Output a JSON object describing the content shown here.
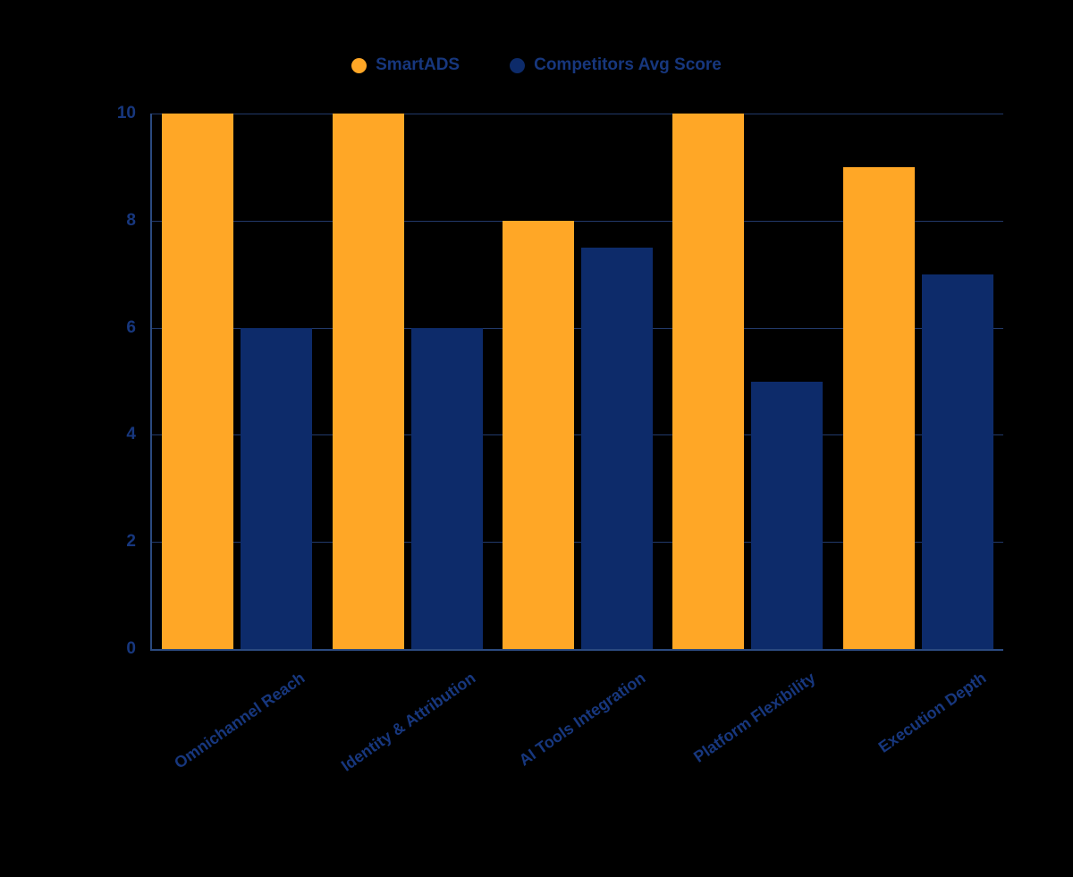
{
  "chart_data": {
    "type": "bar",
    "title": "",
    "xlabel": "",
    "ylabel": "",
    "categories": [
      "Omnichannel Reach",
      "Identity & Attribution",
      "AI Tools Integration",
      "Platform Flexibility",
      "Execution Depth"
    ],
    "series": [
      {
        "name": "SmartADS",
        "color": "#FFA726",
        "values": [
          10,
          10,
          8,
          10,
          9
        ]
      },
      {
        "name": "Competitors Avg Score",
        "color": "#0D2B6A",
        "values": [
          6,
          6,
          7.5,
          5,
          7
        ]
      }
    ],
    "ylim": [
      0,
      10
    ],
    "yticks": [
      0,
      2,
      4,
      6,
      8,
      10
    ],
    "grid": true,
    "legend_position": "top"
  },
  "colors": {
    "background": "#000000",
    "axis": "#2B4A80",
    "gridline": "#22396A",
    "tick_text": "#17377E",
    "series_smartads": "#FFA726",
    "series_competitors": "#0D2B6A"
  }
}
